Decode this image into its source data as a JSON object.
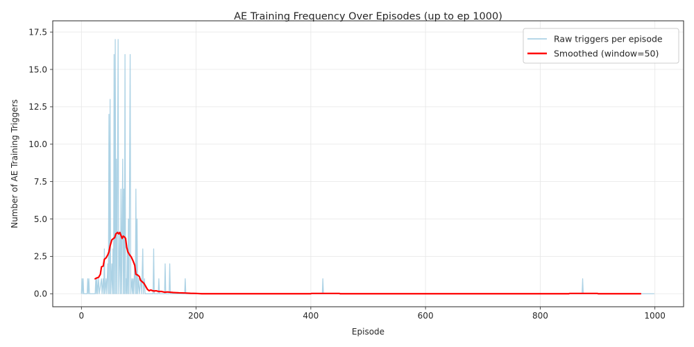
{
  "chart_data": {
    "type": "line",
    "title": "AE Training Frequency Over Episodes (up to ep 1000)",
    "xlabel": "Episode",
    "ylabel": "Number of AE Training Triggers",
    "xlim": [
      -50,
      1050
    ],
    "ylim": [
      -0.87,
      18.25
    ],
    "xticks": [
      0,
      200,
      400,
      600,
      800,
      1000
    ],
    "xtick_labels": [
      "0",
      "200",
      "400",
      "600",
      "800",
      "1000"
    ],
    "yticks": [
      0,
      2.5,
      5,
      7.5,
      10,
      12.5,
      15,
      17.5
    ],
    "ytick_labels": [
      "0.0",
      "2.5",
      "5.0",
      "7.5",
      "10.0",
      "12.5",
      "15.0",
      "17.5"
    ],
    "grid": true,
    "legend_position": "top-right",
    "colors": {
      "raw": "#9ecae1",
      "smoothed": "#ff0000",
      "text": "#262626",
      "grid": "#e6e6e6"
    },
    "series": [
      {
        "name": "Raw triggers per episode",
        "style": "thin-light-blue",
        "points": [
          [
            0,
            0
          ],
          [
            1,
            1
          ],
          [
            2,
            0
          ],
          [
            3,
            1
          ],
          [
            4,
            0
          ],
          [
            10,
            0
          ],
          [
            11,
            1
          ],
          [
            12,
            0
          ],
          [
            13,
            1
          ],
          [
            14,
            0
          ],
          [
            24,
            0
          ],
          [
            25,
            1
          ],
          [
            26,
            0
          ],
          [
            27,
            1
          ],
          [
            28,
            0
          ],
          [
            30,
            1
          ],
          [
            31,
            0
          ],
          [
            35,
            1
          ],
          [
            36,
            0
          ],
          [
            38,
            1
          ],
          [
            39,
            0
          ],
          [
            40,
            3
          ],
          [
            41,
            0
          ],
          [
            43,
            1
          ],
          [
            44,
            0
          ],
          [
            46,
            2
          ],
          [
            47,
            0
          ],
          [
            48,
            12
          ],
          [
            49,
            0
          ],
          [
            50,
            13
          ],
          [
            51,
            0
          ],
          [
            53,
            2
          ],
          [
            54,
            0
          ],
          [
            55,
            3
          ],
          [
            56,
            0
          ],
          [
            57,
            16
          ],
          [
            58,
            0
          ],
          [
            59,
            17
          ],
          [
            60,
            0
          ],
          [
            61,
            9
          ],
          [
            62,
            0
          ],
          [
            64,
            17
          ],
          [
            65,
            0
          ],
          [
            67,
            4
          ],
          [
            68,
            0
          ],
          [
            69,
            7
          ],
          [
            70,
            0
          ],
          [
            72,
            9
          ],
          [
            73,
            0
          ],
          [
            74,
            7
          ],
          [
            75,
            0
          ],
          [
            76,
            16
          ],
          [
            77,
            0
          ],
          [
            78,
            1
          ],
          [
            79,
            0
          ],
          [
            80,
            3
          ],
          [
            81,
            0
          ],
          [
            82,
            5
          ],
          [
            83,
            0
          ],
          [
            85,
            16
          ],
          [
            86,
            0
          ],
          [
            88,
            1
          ],
          [
            89,
            0
          ],
          [
            90,
            1
          ],
          [
            91,
            0
          ],
          [
            93,
            2
          ],
          [
            94,
            0
          ],
          [
            95,
            7
          ],
          [
            96,
            0
          ],
          [
            97,
            5
          ],
          [
            98,
            0
          ],
          [
            100,
            1
          ],
          [
            101,
            0
          ],
          [
            104,
            1
          ],
          [
            105,
            0
          ],
          [
            107,
            3
          ],
          [
            108,
            0
          ],
          [
            110,
            1
          ],
          [
            111,
            0
          ],
          [
            125,
            0
          ],
          [
            126,
            3
          ],
          [
            127,
            0
          ],
          [
            134,
            0
          ],
          [
            135,
            1
          ],
          [
            136,
            0
          ],
          [
            145,
            0
          ],
          [
            146,
            2
          ],
          [
            147,
            0
          ],
          [
            153,
            0
          ],
          [
            154,
            2
          ],
          [
            155,
            0
          ],
          [
            180,
            0
          ],
          [
            181,
            1
          ],
          [
            182,
            0
          ],
          [
            420,
            0
          ],
          [
            421,
            1
          ],
          [
            422,
            0
          ],
          [
            873,
            0
          ],
          [
            874,
            1
          ],
          [
            875,
            0
          ],
          [
            999,
            0
          ]
        ]
      },
      {
        "name": "Smoothed (window=50)",
        "style": "thick-red",
        "points": [
          [
            24,
            1.0
          ],
          [
            27,
            1.06
          ],
          [
            30,
            1.1
          ],
          [
            33,
            1.3
          ],
          [
            35,
            1.8
          ],
          [
            38,
            1.85
          ],
          [
            40,
            2.3
          ],
          [
            43,
            2.4
          ],
          [
            46,
            2.6
          ],
          [
            48,
            2.8
          ],
          [
            50,
            3.2
          ],
          [
            53,
            3.6
          ],
          [
            56,
            3.7
          ],
          [
            58,
            3.75
          ],
          [
            60,
            4.0
          ],
          [
            63,
            4.1
          ],
          [
            65,
            4.0
          ],
          [
            67,
            4.1
          ],
          [
            69,
            3.9
          ],
          [
            71,
            3.7
          ],
          [
            73,
            3.85
          ],
          [
            75,
            3.8
          ],
          [
            77,
            3.7
          ],
          [
            79,
            3.1
          ],
          [
            81,
            2.8
          ],
          [
            84,
            2.6
          ],
          [
            87,
            2.45
          ],
          [
            90,
            2.2
          ],
          [
            93,
            1.9
          ],
          [
            95,
            1.3
          ],
          [
            98,
            1.25
          ],
          [
            101,
            1.15
          ],
          [
            103,
            0.9
          ],
          [
            106,
            0.8
          ],
          [
            109,
            0.7
          ],
          [
            112,
            0.5
          ],
          [
            115,
            0.3
          ],
          [
            118,
            0.2
          ],
          [
            121,
            0.25
          ],
          [
            124,
            0.2
          ],
          [
            127,
            0.18
          ],
          [
            130,
            0.2
          ],
          [
            135,
            0.15
          ],
          [
            140,
            0.15
          ],
          [
            145,
            0.1
          ],
          [
            150,
            0.12
          ],
          [
            160,
            0.08
          ],
          [
            170,
            0.06
          ],
          [
            180,
            0.05
          ],
          [
            190,
            0.03
          ],
          [
            200,
            0.02
          ],
          [
            210,
            0
          ],
          [
            400,
            0
          ],
          [
            401,
            0.02
          ],
          [
            450,
            0.02
          ],
          [
            451,
            0
          ],
          [
            850,
            0
          ],
          [
            851,
            0.02
          ],
          [
            900,
            0.02
          ],
          [
            901,
            0
          ],
          [
            975,
            0
          ]
        ]
      }
    ]
  }
}
